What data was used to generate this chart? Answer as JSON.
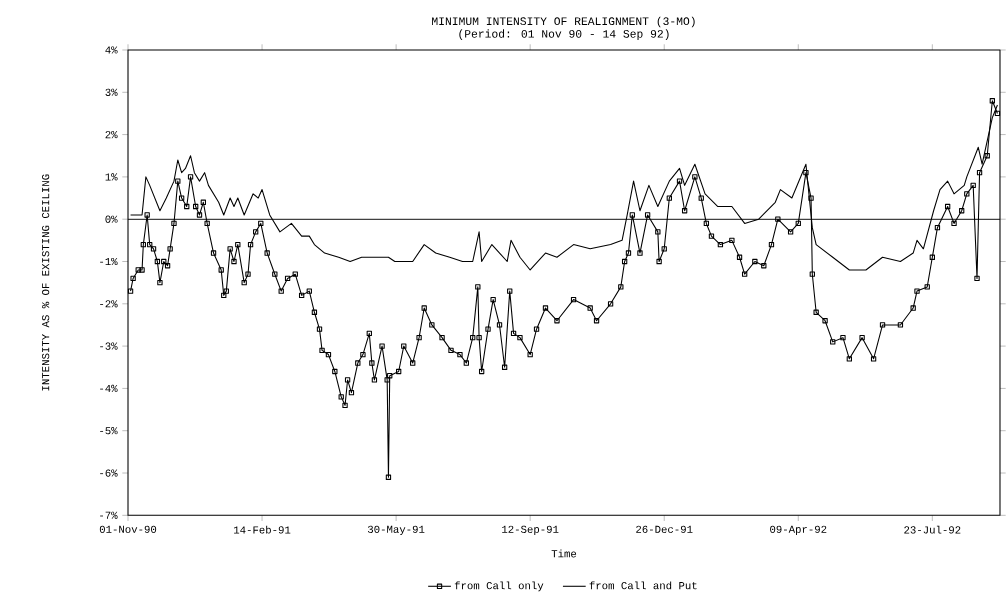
{
  "chart_data": {
    "type": "line",
    "title": "MINIMUM INTENSITY OF REALIGNMENT (3-MO)",
    "subtitle": "(Period: 01 Nov 90 - 14 Sep 92)",
    "xlabel": "Time",
    "ylabel": "INTENSITY AS % OF EXISTING CEILING",
    "xlim": [
      "1990-11-01",
      "1992-09-14"
    ],
    "xticks": [
      {
        "value": "1990-11-01",
        "label": "01-Nov-90"
      },
      {
        "value": "1991-02-14",
        "label": "14-Feb-91"
      },
      {
        "value": "1991-05-30",
        "label": "30-May-91"
      },
      {
        "value": "1991-09-12",
        "label": "12-Sep-91"
      },
      {
        "value": "1991-12-26",
        "label": "26-Dec-91"
      },
      {
        "value": "1992-04-09",
        "label": "09-Apr-92"
      },
      {
        "value": "1992-07-23",
        "label": "23-Jul-92"
      }
    ],
    "ylim": [
      -7,
      4
    ],
    "yticks": [
      {
        "value": 4,
        "label": "4%"
      },
      {
        "value": 3,
        "label": "3%"
      },
      {
        "value": 2,
        "label": "2%"
      },
      {
        "value": 1,
        "label": "1%"
      },
      {
        "value": 0,
        "label": "0%"
      },
      {
        "value": -1,
        "label": "-1%"
      },
      {
        "value": -2,
        "label": "-2%"
      },
      {
        "value": -3,
        "label": "-3%"
      },
      {
        "value": -4,
        "label": "-4%"
      },
      {
        "value": -5,
        "label": "-5%"
      },
      {
        "value": -6,
        "label": "-6%"
      },
      {
        "value": -7,
        "label": "-7%"
      }
    ],
    "ref_lines": [
      {
        "axis": "y",
        "value": 0,
        "color": "#000000"
      }
    ],
    "grid": false,
    "legend": "bottom",
    "line_style": "solid",
    "series": [
      {
        "name": "from Call only",
        "color": "#000000",
        "marker": "square",
        "x": [
          "1990-11-03",
          "1990-11-05",
          "1990-11-09",
          "1990-11-12",
          "1990-11-13",
          "1990-11-16",
          "1990-11-18",
          "1990-11-21",
          "1990-11-24",
          "1990-11-26",
          "1990-11-29",
          "1990-12-02",
          "1990-12-04",
          "1990-12-07",
          "1990-12-10",
          "1990-12-13",
          "1990-12-17",
          "1990-12-20",
          "1990-12-24",
          "1990-12-27",
          "1990-12-30",
          "1991-01-02",
          "1991-01-07",
          "1991-01-13",
          "1991-01-15",
          "1991-01-17",
          "1991-01-20",
          "1991-01-23",
          "1991-01-26",
          "1991-01-31",
          "1991-02-03",
          "1991-02-05",
          "1991-02-09",
          "1991-02-13",
          "1991-02-18",
          "1991-02-24",
          "1991-03-01",
          "1991-03-06",
          "1991-03-12",
          "1991-03-17",
          "1991-03-23",
          "1991-03-27",
          "1991-03-31",
          "1991-04-02",
          "1991-04-07",
          "1991-04-12",
          "1991-04-17",
          "1991-04-20",
          "1991-04-22",
          "1991-04-25",
          "1991-04-30",
          "1991-05-04",
          "1991-05-09",
          "1991-05-11",
          "1991-05-13",
          "1991-05-19",
          "1991-05-23",
          "1991-05-24",
          "1991-05-25",
          "1991-06-01",
          "1991-06-05",
          "1991-06-12",
          "1991-06-17",
          "1991-06-21",
          "1991-06-27",
          "1991-07-05",
          "1991-07-12",
          "1991-07-19",
          "1991-07-24",
          "1991-07-29",
          "1991-08-02",
          "1991-08-03",
          "1991-08-05",
          "1991-08-10",
          "1991-08-14",
          "1991-08-19",
          "1991-08-23",
          "1991-08-27",
          "1991-08-30",
          "1991-09-04",
          "1991-09-12",
          "1991-09-17",
          "1991-09-24",
          "1991-10-03",
          "1991-10-16",
          "1991-10-29",
          "1991-11-03",
          "1991-11-14",
          "1991-11-22",
          "1991-11-25",
          "1991-11-28",
          "1991-12-01",
          "1991-12-07",
          "1991-12-13",
          "1991-12-21",
          "1991-12-22",
          "1991-12-26",
          "1991-12-30",
          "1992-01-07",
          "1992-01-11",
          "1992-01-19",
          "1992-01-24",
          "1992-01-28",
          "1992-02-01",
          "1992-02-08",
          "1992-02-17",
          "1992-02-23",
          "1992-02-27",
          "1992-03-06",
          "1992-03-13",
          "1992-03-19",
          "1992-03-24",
          "1992-04-03",
          "1992-04-09",
          "1992-04-15",
          "1992-04-19",
          "1992-04-20",
          "1992-04-23",
          "1992-04-30",
          "1992-05-06",
          "1992-05-14",
          "1992-05-19",
          "1992-05-29",
          "1992-06-07",
          "1992-06-14",
          "1992-06-28",
          "1992-07-08",
          "1992-07-11",
          "1992-07-19",
          "1992-07-23",
          "1992-07-27",
          "1992-08-04",
          "1992-08-09",
          "1992-08-15",
          "1992-08-19",
          "1992-08-24",
          "1992-08-27",
          "1992-08-29",
          "1992-09-04",
          "1992-09-08",
          "1992-09-12"
        ],
        "values": [
          -1.7,
          -1.4,
          -1.2,
          -1.2,
          -0.6,
          0.1,
          -0.6,
          -0.7,
          -1.0,
          -1.5,
          -1.0,
          -1.1,
          -0.7,
          -0.1,
          0.9,
          0.5,
          0.3,
          1.0,
          0.3,
          0.1,
          0.4,
          -0.1,
          -0.8,
          -1.2,
          -1.8,
          -1.7,
          -0.7,
          -1.0,
          -0.6,
          -1.5,
          -1.3,
          -0.6,
          -0.3,
          -0.1,
          -0.8,
          -1.3,
          -1.7,
          -1.4,
          -1.3,
          -1.8,
          -1.7,
          -2.2,
          -2.6,
          -3.1,
          -3.2,
          -3.6,
          -4.2,
          -4.4,
          -3.8,
          -4.1,
          -3.4,
          -3.2,
          -2.7,
          -3.4,
          -3.8,
          -3.0,
          -3.8,
          -6.1,
          -3.7,
          -3.6,
          -3.0,
          -3.4,
          -2.8,
          -2.1,
          -2.5,
          -2.8,
          -3.1,
          -3.2,
          -3.4,
          -2.8,
          -1.6,
          -2.8,
          -3.6,
          -2.6,
          -1.9,
          -2.5,
          -3.5,
          -1.7,
          -2.7,
          -2.8,
          -3.2,
          -2.6,
          -2.1,
          -2.4,
          -1.9,
          -2.1,
          -2.4,
          -2.0,
          -1.6,
          -1.0,
          -0.8,
          0.1,
          -0.8,
          0.1,
          -0.3,
          -1.0,
          -0.7,
          0.5,
          0.9,
          0.2,
          1.0,
          0.5,
          -0.1,
          -0.4,
          -0.6,
          -0.5,
          -0.9,
          -1.3,
          -1.0,
          -1.1,
          -0.6,
          0.0,
          -0.3,
          -0.1,
          1.1,
          0.5,
          -1.3,
          -2.2,
          -2.4,
          -2.9,
          -2.8,
          -3.3,
          -2.8,
          -3.3,
          -2.5,
          -2.5,
          -2.1,
          -1.7,
          -1.6,
          -0.9,
          -0.2,
          0.3,
          -0.1,
          0.2,
          0.6,
          0.8,
          -1.4,
          1.1,
          1.5,
          2.8,
          2.5
        ]
      },
      {
        "name": "from Call and Put",
        "color": "#000000",
        "marker": "none",
        "x": [
          "1990-11-03",
          "1990-11-12",
          "1990-11-15",
          "1990-11-18",
          "1990-11-26",
          "1990-12-01",
          "1990-12-07",
          "1990-12-10",
          "1990-12-13",
          "1990-12-16",
          "1990-12-20",
          "1990-12-23",
          "1990-12-27",
          "1990-12-31",
          "1991-01-03",
          "1991-01-11",
          "1991-01-15",
          "1991-01-20",
          "1991-01-23",
          "1991-01-26",
          "1991-01-31",
          "1991-02-07",
          "1991-02-11",
          "1991-02-14",
          "1991-02-20",
          "1991-02-28",
          "1991-03-09",
          "1991-03-17",
          "1991-03-23",
          "1991-03-27",
          "1991-04-04",
          "1991-04-15",
          "1991-04-24",
          "1991-05-03",
          "1991-05-11",
          "1991-05-24",
          "1991-05-29",
          "1991-06-12",
          "1991-06-21",
          "1991-06-30",
          "1991-07-11",
          "1991-07-21",
          "1991-07-29",
          "1991-08-03",
          "1991-08-05",
          "1991-08-13",
          "1991-08-25",
          "1991-08-28",
          "1991-09-04",
          "1991-09-12",
          "1991-09-24",
          "1991-10-03",
          "1991-10-16",
          "1991-10-29",
          "1991-11-14",
          "1991-11-23",
          "1991-11-27",
          "1991-12-02",
          "1991-12-07",
          "1991-12-14",
          "1991-12-21",
          "1991-12-30",
          "1992-01-07",
          "1992-01-11",
          "1992-01-19",
          "1992-01-27",
          "1992-02-06",
          "1992-02-17",
          "1992-02-27",
          "1992-03-09",
          "1992-03-22",
          "1992-03-26",
          "1992-04-04",
          "1992-04-15",
          "1992-04-20",
          "1992-04-23",
          "1992-05-06",
          "1992-05-19",
          "1992-06-01",
          "1992-06-14",
          "1992-06-28",
          "1992-07-08",
          "1992-07-11",
          "1992-07-16",
          "1992-07-24",
          "1992-07-29",
          "1992-08-04",
          "1992-08-09",
          "1992-08-17",
          "1992-08-19",
          "1992-08-28",
          "1992-08-31",
          "1992-09-08",
          "1992-09-12"
        ],
        "values": [
          0.1,
          0.1,
          1.0,
          0.8,
          0.2,
          0.5,
          0.9,
          1.4,
          1.1,
          1.2,
          1.5,
          1.1,
          0.9,
          1.1,
          0.8,
          0.4,
          0.1,
          0.5,
          0.3,
          0.5,
          0.1,
          0.6,
          0.5,
          0.7,
          0.1,
          -0.3,
          -0.1,
          -0.4,
          -0.4,
          -0.6,
          -0.8,
          -0.9,
          -1.0,
          -0.9,
          -0.9,
          -0.9,
          -1.0,
          -1.0,
          -0.6,
          -0.8,
          -0.9,
          -1.0,
          -1.0,
          -0.3,
          -1.0,
          -0.6,
          -1.0,
          -0.5,
          -0.9,
          -1.2,
          -0.8,
          -0.9,
          -0.6,
          -0.7,
          -0.6,
          -0.5,
          0.1,
          0.9,
          0.2,
          0.8,
          0.3,
          0.9,
          1.2,
          0.8,
          1.3,
          0.6,
          0.3,
          0.3,
          -0.1,
          0.0,
          0.4,
          0.7,
          0.5,
          1.3,
          -0.2,
          -0.6,
          -0.9,
          -1.2,
          -1.2,
          -0.9,
          -1.0,
          -0.8,
          -0.5,
          -0.7,
          0.2,
          0.7,
          0.9,
          0.6,
          0.8,
          1.0,
          1.7,
          1.3,
          2.4,
          2.7
        ]
      }
    ]
  }
}
